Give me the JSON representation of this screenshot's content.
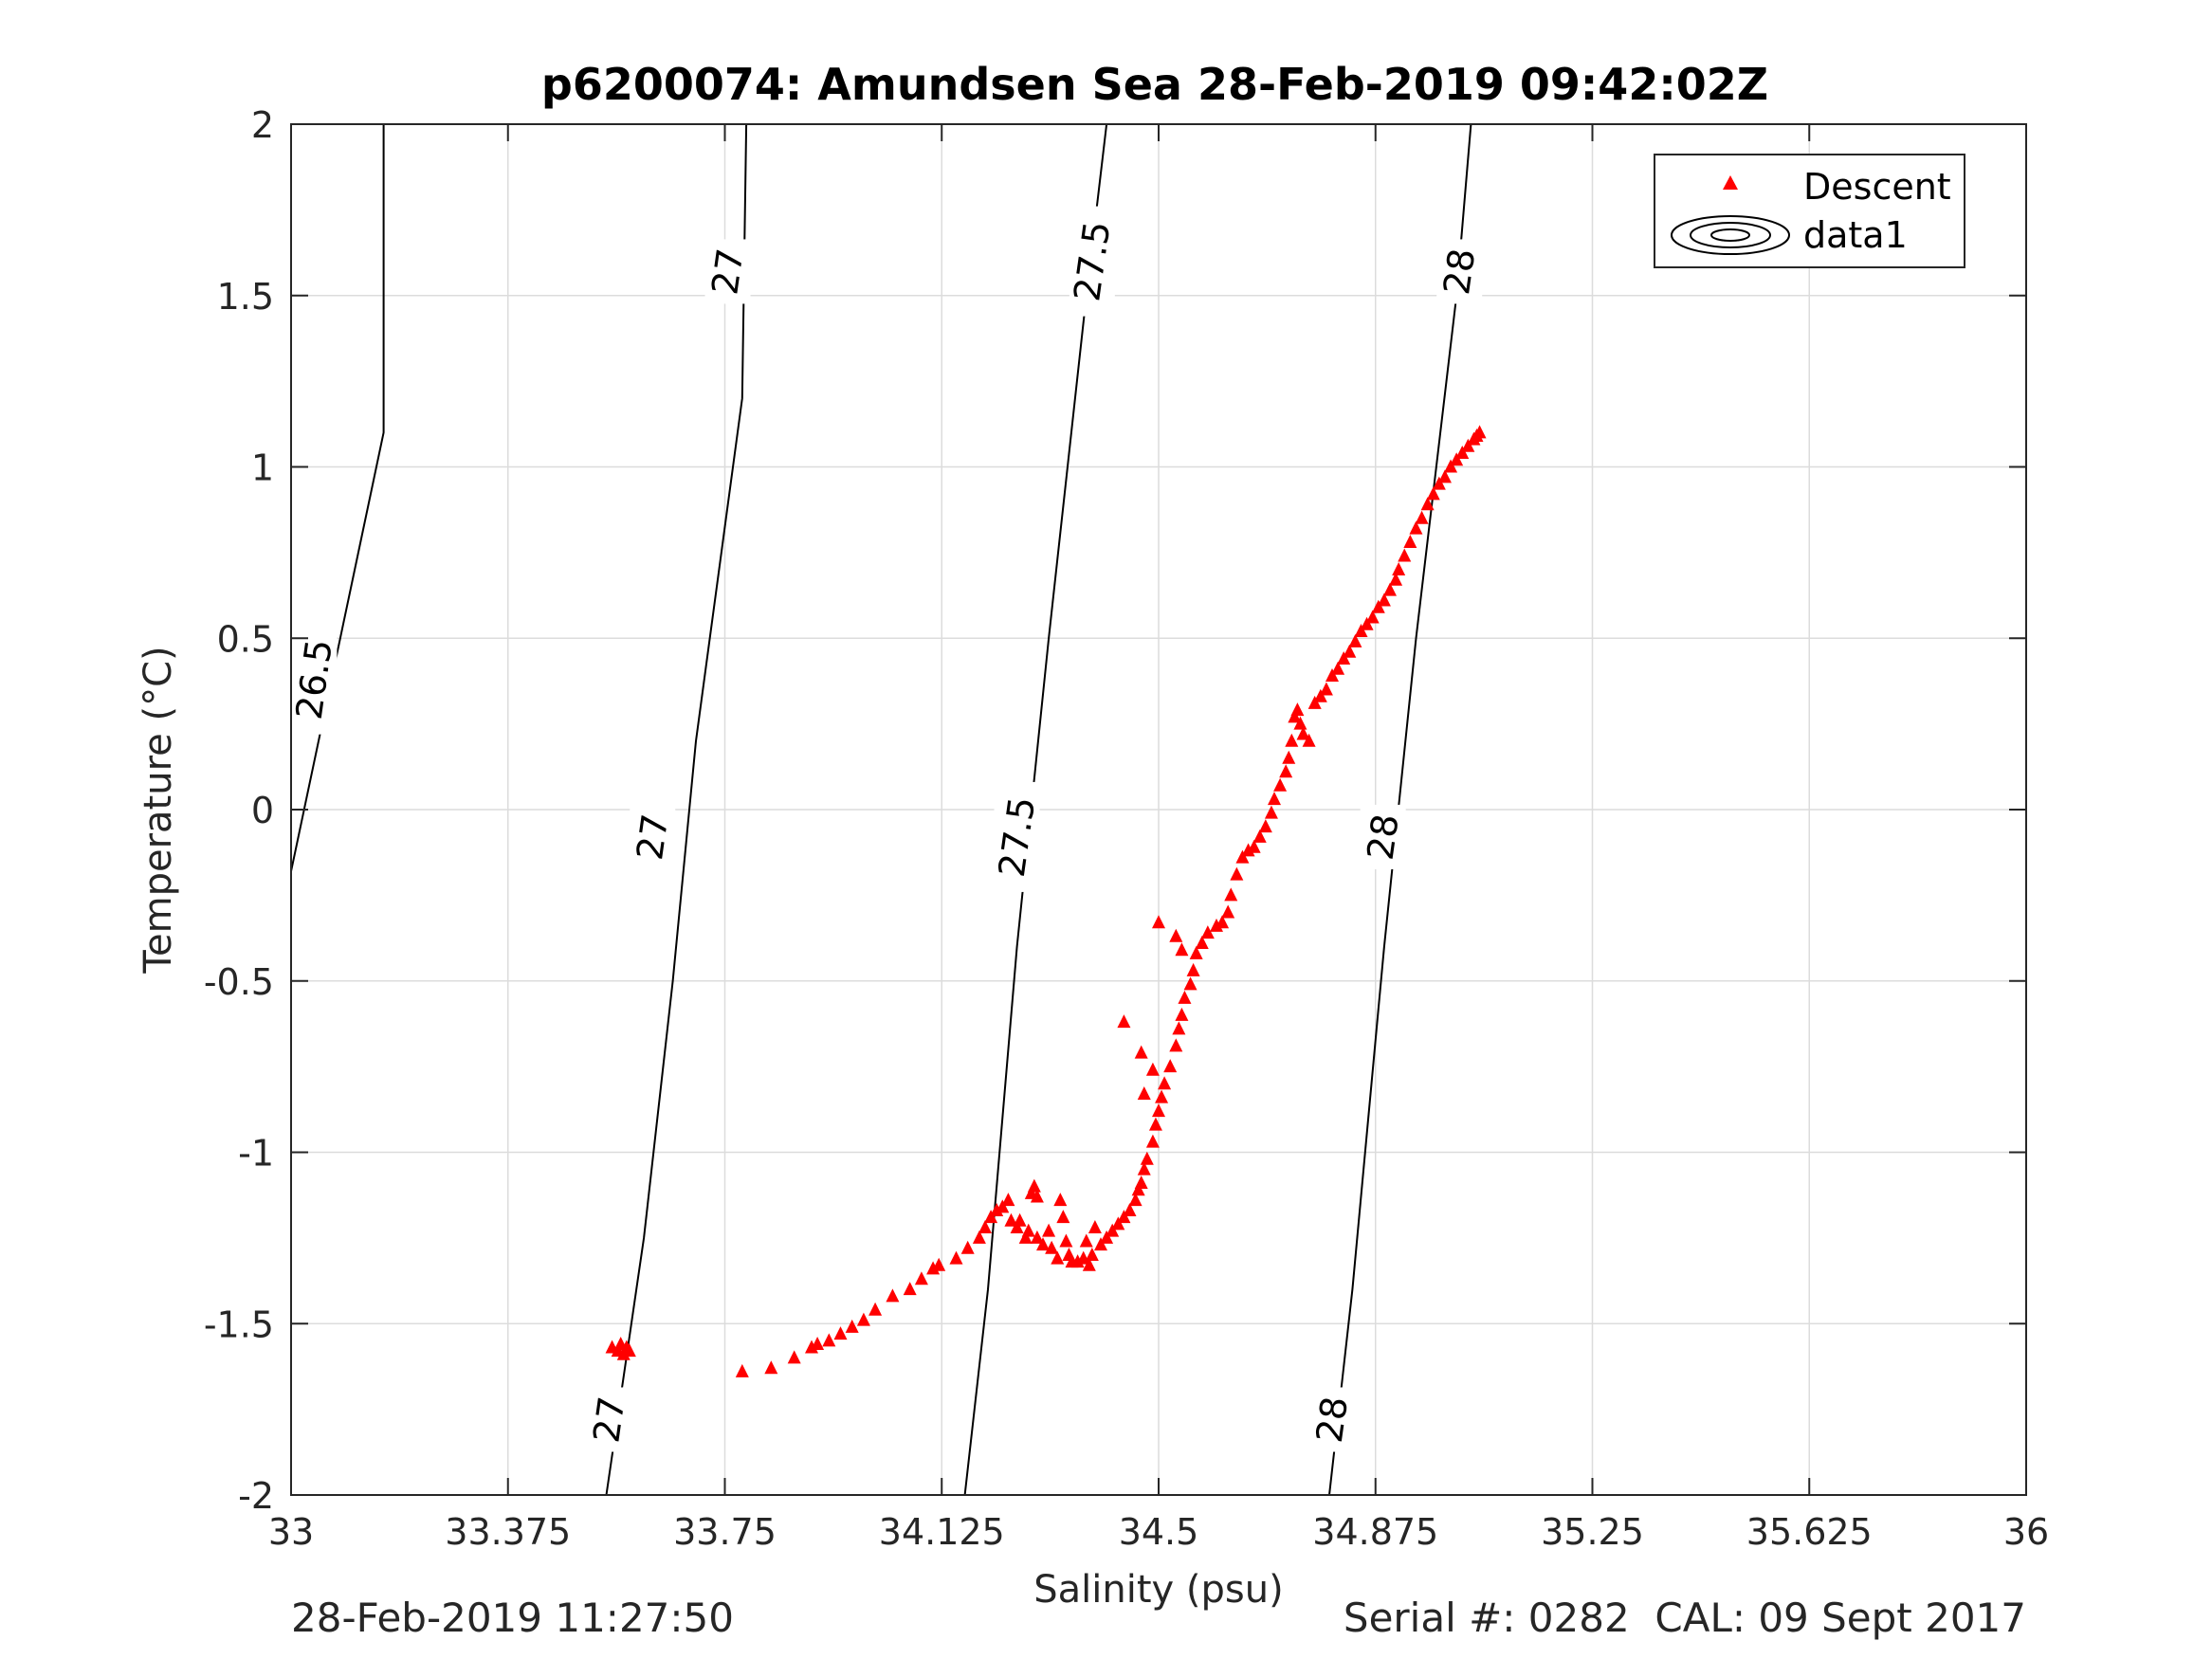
{
  "chart_data": {
    "type": "scatter",
    "title": "p6200074: Amundsen Sea 28-Feb-2019 09:42:02Z",
    "xlabel": "Salinity (psu)",
    "ylabel": "Temperature (°C)",
    "xlim": [
      33,
      36
    ],
    "ylim": [
      -2,
      2
    ],
    "x_ticks": [
      33,
      33.375,
      33.75,
      34.125,
      34.5,
      34.875,
      35.25,
      35.625,
      36
    ],
    "x_tick_labels": [
      "33",
      "33.375",
      "33.75",
      "34.125",
      "34.5",
      "34.875",
      "35.25",
      "35.625",
      "36"
    ],
    "y_ticks": [
      -2,
      -1.5,
      -1,
      -0.5,
      0,
      0.5,
      1,
      1.5,
      2
    ],
    "y_tick_labels": [
      "-2",
      "-1.5",
      "-1",
      "-0.5",
      "0",
      "0.5",
      "1",
      "1.5",
      "2"
    ],
    "grid": true,
    "legend_placement": "top-right",
    "legend": [
      "Descent",
      "data1"
    ],
    "marker_color": "#ff0000",
    "contours": [
      {
        "level": "26.5",
        "points": [
          [
            33.0,
            -0.18
          ],
          [
            33.06,
            0.3
          ],
          [
            33.16,
            1.1
          ],
          [
            33.16,
            2.0
          ]
        ],
        "labels": [
          [
            33.04,
            0.38
          ]
        ]
      },
      {
        "level": "27",
        "points": [
          [
            33.545,
            -2.0
          ],
          [
            33.61,
            -1.25
          ],
          [
            33.66,
            -0.5
          ],
          [
            33.7,
            0.2
          ],
          [
            33.78,
            1.2
          ],
          [
            33.787,
            2.0
          ]
        ],
        "labels": [
          [
            33.55,
            -1.78
          ],
          [
            33.625,
            -0.08
          ],
          [
            33.755,
            1.57
          ]
        ]
      },
      {
        "level": "27.5",
        "points": [
          [
            34.165,
            -2.0
          ],
          [
            34.205,
            -1.4
          ],
          [
            34.255,
            -0.4
          ],
          [
            34.31,
            0.5
          ],
          [
            34.375,
            1.5
          ],
          [
            34.41,
            2.0
          ]
        ],
        "labels": [
          [
            34.255,
            -0.08
          ],
          [
            34.385,
            1.6
          ]
        ]
      },
      {
        "level": "28",
        "points": [
          [
            34.795,
            -2.0
          ],
          [
            34.835,
            -1.4
          ],
          [
            34.89,
            -0.4
          ],
          [
            34.945,
            0.5
          ],
          [
            35.015,
            1.5
          ],
          [
            35.04,
            2.0
          ]
        ],
        "labels": [
          [
            34.8,
            -1.78
          ],
          [
            34.888,
            -0.08
          ],
          [
            35.02,
            1.57
          ]
        ]
      }
    ],
    "series": [
      {
        "name": "Descent",
        "points": [
          [
            33.78,
            -1.64
          ],
          [
            33.83,
            -1.63
          ],
          [
            33.87,
            -1.6
          ],
          [
            33.9,
            -1.57
          ],
          [
            33.91,
            -1.56
          ],
          [
            33.93,
            -1.55
          ],
          [
            33.95,
            -1.53
          ],
          [
            33.97,
            -1.51
          ],
          [
            33.99,
            -1.49
          ],
          [
            34.01,
            -1.46
          ],
          [
            34.04,
            -1.42
          ],
          [
            34.07,
            -1.4
          ],
          [
            34.09,
            -1.37
          ],
          [
            34.11,
            -1.34
          ],
          [
            34.12,
            -1.33
          ],
          [
            34.15,
            -1.31
          ],
          [
            34.17,
            -1.28
          ],
          [
            34.19,
            -1.25
          ],
          [
            34.2,
            -1.22
          ],
          [
            34.21,
            -1.19
          ],
          [
            34.22,
            -1.17
          ],
          [
            34.23,
            -1.16
          ],
          [
            34.24,
            -1.14
          ],
          [
            34.245,
            -1.2
          ],
          [
            34.255,
            -1.22
          ],
          [
            34.26,
            -1.2
          ],
          [
            34.27,
            -1.25
          ],
          [
            34.275,
            -1.23
          ],
          [
            34.28,
            -1.12
          ],
          [
            34.285,
            -1.1
          ],
          [
            34.29,
            -1.13
          ],
          [
            34.29,
            -1.25
          ],
          [
            34.3,
            -1.27
          ],
          [
            34.31,
            -1.23
          ],
          [
            34.315,
            -1.28
          ],
          [
            34.325,
            -1.31
          ],
          [
            34.33,
            -1.14
          ],
          [
            34.335,
            -1.19
          ],
          [
            34.34,
            -1.26
          ],
          [
            34.345,
            -1.3
          ],
          [
            34.35,
            -1.32
          ],
          [
            34.36,
            -1.32
          ],
          [
            34.37,
            -1.31
          ],
          [
            34.375,
            -1.26
          ],
          [
            34.38,
            -1.33
          ],
          [
            34.385,
            -1.3
          ],
          [
            34.39,
            -1.22
          ],
          [
            34.4,
            -1.27
          ],
          [
            34.41,
            -1.25
          ],
          [
            34.42,
            -1.23
          ],
          [
            34.43,
            -1.21
          ],
          [
            34.44,
            -1.19
          ],
          [
            34.45,
            -1.17
          ],
          [
            34.46,
            -1.14
          ],
          [
            34.465,
            -1.11
          ],
          [
            34.47,
            -1.09
          ],
          [
            34.475,
            -1.05
          ],
          [
            34.48,
            -1.02
          ],
          [
            34.49,
            -0.97
          ],
          [
            34.495,
            -0.92
          ],
          [
            34.5,
            -0.88
          ],
          [
            34.505,
            -0.84
          ],
          [
            34.51,
            -0.8
          ],
          [
            34.52,
            -0.75
          ],
          [
            34.53,
            -0.69
          ],
          [
            34.535,
            -0.64
          ],
          [
            34.54,
            -0.6
          ],
          [
            34.545,
            -0.55
          ],
          [
            34.555,
            -0.51
          ],
          [
            34.56,
            -0.47
          ],
          [
            34.565,
            -0.42
          ],
          [
            34.575,
            -0.39
          ],
          [
            34.585,
            -0.36
          ],
          [
            34.6,
            -0.34
          ],
          [
            34.61,
            -0.33
          ],
          [
            34.62,
            -0.3
          ],
          [
            34.625,
            -0.25
          ],
          [
            34.635,
            -0.19
          ],
          [
            34.645,
            -0.14
          ],
          [
            34.655,
            -0.12
          ],
          [
            34.665,
            -0.11
          ],
          [
            34.675,
            -0.08
          ],
          [
            34.685,
            -0.05
          ],
          [
            34.695,
            -0.01
          ],
          [
            34.7,
            0.03
          ],
          [
            34.71,
            0.07
          ],
          [
            34.72,
            0.11
          ],
          [
            34.725,
            0.15
          ],
          [
            34.73,
            0.2
          ],
          [
            34.735,
            0.27
          ],
          [
            34.74,
            0.29
          ],
          [
            34.745,
            0.25
          ],
          [
            34.75,
            0.22
          ],
          [
            34.76,
            0.2
          ],
          [
            34.77,
            0.31
          ],
          [
            34.78,
            0.33
          ],
          [
            34.79,
            0.35
          ],
          [
            34.8,
            0.39
          ],
          [
            34.81,
            0.41
          ],
          [
            34.82,
            0.44
          ],
          [
            34.83,
            0.46
          ],
          [
            34.84,
            0.49
          ],
          [
            34.85,
            0.52
          ],
          [
            34.86,
            0.54
          ],
          [
            34.87,
            0.56
          ],
          [
            34.88,
            0.59
          ],
          [
            34.89,
            0.61
          ],
          [
            34.9,
            0.64
          ],
          [
            34.91,
            0.67
          ],
          [
            34.915,
            0.7
          ],
          [
            34.925,
            0.74
          ],
          [
            34.935,
            0.78
          ],
          [
            34.945,
            0.82
          ],
          [
            34.955,
            0.85
          ],
          [
            34.965,
            0.89
          ],
          [
            34.975,
            0.92
          ],
          [
            34.985,
            0.95
          ],
          [
            34.995,
            0.97
          ],
          [
            35.005,
            1.0
          ],
          [
            35.015,
            1.02
          ],
          [
            35.025,
            1.04
          ],
          [
            35.035,
            1.06
          ],
          [
            35.045,
            1.08
          ],
          [
            35.05,
            1.09
          ],
          [
            35.055,
            1.1
          ],
          [
            34.44,
            -0.62
          ],
          [
            34.47,
            -0.71
          ],
          [
            34.475,
            -0.83
          ],
          [
            34.49,
            -0.76
          ],
          [
            34.5,
            -0.33
          ],
          [
            34.53,
            -0.37
          ],
          [
            34.54,
            -0.41
          ],
          [
            33.555,
            -1.57
          ],
          [
            33.565,
            -1.58
          ],
          [
            33.57,
            -1.56
          ],
          [
            33.575,
            -1.59
          ],
          [
            33.58,
            -1.57
          ],
          [
            33.585,
            -1.58
          ]
        ]
      }
    ]
  },
  "footer": {
    "left_timestamp": "28-Feb-2019 11:27:50",
    "right_info": "Serial #: 0282  CAL: 09 Sept 2017"
  }
}
